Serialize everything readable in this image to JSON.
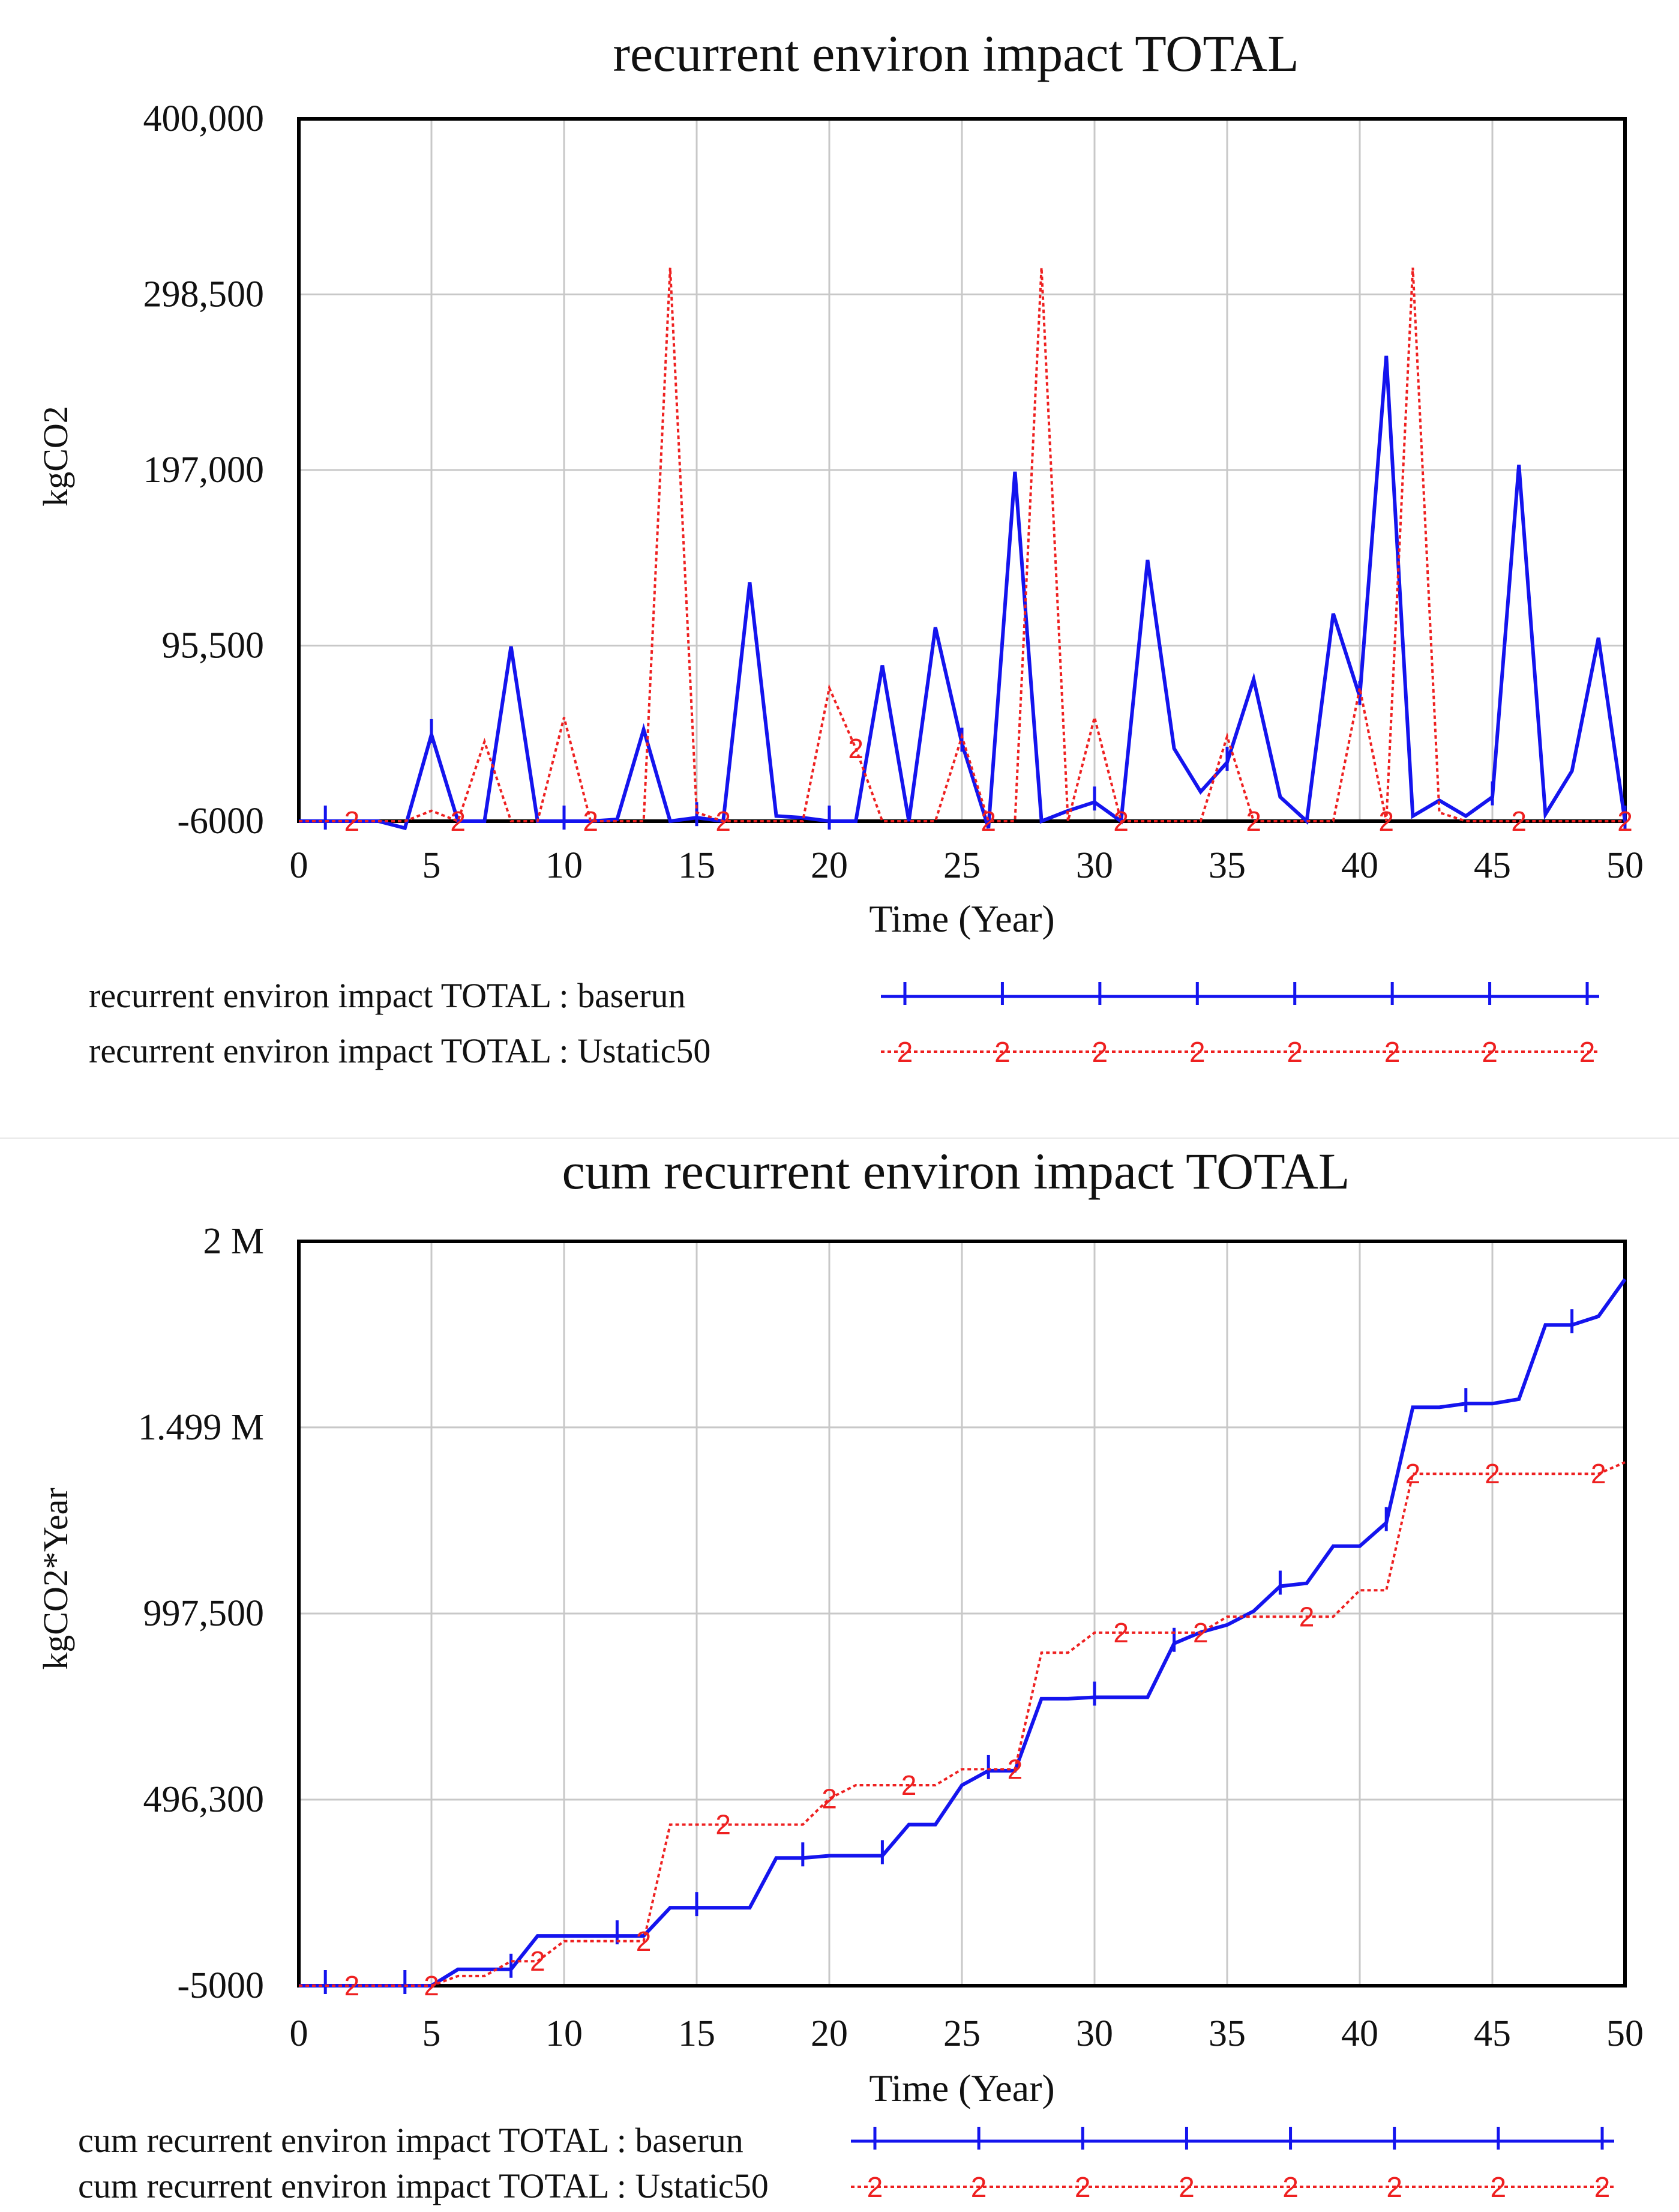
{
  "chart_data": [
    {
      "type": "line",
      "title": "recurrent environ impact TOTAL",
      "xlabel": "Time (Year)",
      "ylabel": "kgCO2",
      "xlim": [
        0,
        50
      ],
      "ylim": [
        -6000,
        400000
      ],
      "x_ticks": [
        "0",
        "5",
        "10",
        "15",
        "20",
        "25",
        "30",
        "35",
        "40",
        "45",
        "50"
      ],
      "y_ticks": [
        {
          "value": 400000,
          "label": "400,000"
        },
        {
          "value": 298500,
          "label": "298,500"
        },
        {
          "value": 197000,
          "label": "197,000"
        },
        {
          "value": 95500,
          "label": "95,500"
        },
        {
          "value": -6000,
          "label": "-6000"
        }
      ],
      "grid": true,
      "series": [
        {
          "name": "recurrent environ impact TOTAL : baserun",
          "marker": "1",
          "color": "#1414ee",
          "dashed": false,
          "x": [
            0,
            1,
            2,
            3,
            4,
            5,
            6,
            7,
            8,
            9,
            10,
            11,
            12,
            13,
            14,
            15,
            16,
            17,
            18,
            19,
            20,
            21,
            22,
            23,
            24,
            25,
            26,
            27,
            28,
            29,
            30,
            31,
            32,
            33,
            34,
            35,
            36,
            37,
            38,
            39,
            40,
            41,
            42,
            43,
            44,
            45,
            46,
            47,
            48,
            49,
            50
          ],
          "values": [
            -6000,
            -6000,
            -6000,
            -6000,
            -10000,
            44000,
            -6000,
            -6000,
            95000,
            -6000,
            -6000,
            -6000,
            -5000,
            47000,
            -6000,
            -4000,
            -6000,
            132000,
            -3000,
            -4000,
            -6000,
            -6000,
            84000,
            -6000,
            106000,
            39000,
            -10000,
            196000,
            -6000,
            0,
            5000,
            -6000,
            145000,
            36000,
            11000,
            28000,
            76000,
            8000,
            -6000,
            114000,
            66000,
            263000,
            -3000,
            6000,
            -3000,
            8000,
            200000,
            -2000,
            23000,
            100000,
            -6000
          ]
        },
        {
          "name": "recurrent environ impact TOTAL : Ustatic50",
          "marker": "2",
          "color": "#ee2020",
          "dashed": true,
          "x": [
            0,
            1,
            2,
            3,
            4,
            5,
            6,
            7,
            8,
            9,
            10,
            11,
            12,
            13,
            14,
            15,
            16,
            17,
            18,
            19,
            20,
            21,
            22,
            23,
            24,
            25,
            26,
            27,
            28,
            29,
            30,
            31,
            32,
            33,
            34,
            35,
            36,
            37,
            38,
            39,
            40,
            41,
            42,
            43,
            44,
            45,
            46,
            47,
            48,
            49,
            50
          ],
          "values": [
            -6000,
            -6000,
            -6000,
            -6000,
            -6000,
            0,
            -6000,
            40000,
            -6000,
            -6000,
            54000,
            -6000,
            -6000,
            -6000,
            314000,
            -1000,
            -6000,
            -6000,
            -6000,
            -6000,
            71000,
            36000,
            -6000,
            -6000,
            -6000,
            43000,
            -6000,
            -6000,
            314000,
            -6000,
            54000,
            -6000,
            -6000,
            -6000,
            -6000,
            43000,
            -6000,
            -6000,
            -6000,
            -6000,
            71000,
            -6000,
            314000,
            -1000,
            -6000,
            -6000,
            -6000,
            -6000,
            -6000,
            -6000,
            -6000
          ]
        }
      ]
    },
    {
      "type": "line",
      "title": "cum recurrent environ impact TOTAL",
      "xlabel": "Time (Year)",
      "ylabel": "kgCO2*Year",
      "xlim": [
        0,
        50
      ],
      "ylim": [
        -5000,
        2000000
      ],
      "x_ticks": [
        "0",
        "5",
        "10",
        "15",
        "20",
        "25",
        "30",
        "35",
        "40",
        "45",
        "50"
      ],
      "y_ticks": [
        {
          "value": 2000000,
          "label": "2 M"
        },
        {
          "value": 1499000,
          "label": "1.499 M"
        },
        {
          "value": 997500,
          "label": "997,500"
        },
        {
          "value": 496300,
          "label": "496,300"
        },
        {
          "value": -5000,
          "label": "-5000"
        }
      ],
      "grid": true,
      "series": [
        {
          "name": "cum recurrent environ impact TOTAL : baserun",
          "marker": "1",
          "color": "#1414ee",
          "dashed": false,
          "x": [
            0,
            1,
            2,
            3,
            4,
            5,
            6,
            7,
            8,
            9,
            10,
            11,
            12,
            13,
            14,
            15,
            16,
            17,
            18,
            19,
            20,
            21,
            22,
            23,
            24,
            25,
            26,
            27,
            28,
            29,
            30,
            31,
            32,
            33,
            34,
            35,
            36,
            37,
            38,
            39,
            40,
            41,
            42,
            43,
            44,
            45,
            46,
            47,
            48,
            49,
            50
          ],
          "values": [
            -5000,
            -5000,
            -5000,
            -5000,
            -5000,
            -5000,
            39000,
            39000,
            39000,
            129000,
            129000,
            129000,
            129000,
            129000,
            205000,
            205000,
            205000,
            205000,
            339000,
            339000,
            345000,
            345000,
            345000,
            429000,
            429000,
            535000,
            574000,
            574000,
            768000,
            768000,
            772000,
            772000,
            772000,
            917000,
            947000,
            967000,
            1004000,
            1071000,
            1079000,
            1179000,
            1179000,
            1242000,
            1553000,
            1553000,
            1563000,
            1563000,
            1575000,
            1775000,
            1775000,
            1798000,
            1898000
          ]
        },
        {
          "name": "cum recurrent environ impact TOTAL : Ustatic50",
          "marker": "2",
          "color": "#ee2020",
          "dashed": true,
          "x": [
            0,
            1,
            2,
            3,
            4,
            5,
            6,
            7,
            8,
            9,
            10,
            11,
            12,
            13,
            14,
            15,
            16,
            17,
            18,
            19,
            20,
            21,
            22,
            23,
            24,
            25,
            26,
            27,
            28,
            29,
            30,
            31,
            32,
            33,
            34,
            35,
            36,
            37,
            38,
            39,
            40,
            41,
            42,
            43,
            44,
            45,
            46,
            47,
            48,
            49,
            50
          ],
          "values": [
            -5000,
            -5000,
            -5000,
            -5000,
            -5000,
            -5000,
            21000,
            21000,
            61000,
            61000,
            115000,
            115000,
            115000,
            115000,
            429000,
            429000,
            429000,
            429000,
            429000,
            429000,
            499000,
            535000,
            535000,
            535000,
            535000,
            578000,
            578000,
            578000,
            892000,
            892000,
            946000,
            946000,
            946000,
            946000,
            946000,
            989000,
            989000,
            989000,
            989000,
            989000,
            1060000,
            1060000,
            1374000,
            1374000,
            1374000,
            1374000,
            1374000,
            1374000,
            1374000,
            1374000,
            1405000
          ]
        }
      ]
    }
  ]
}
